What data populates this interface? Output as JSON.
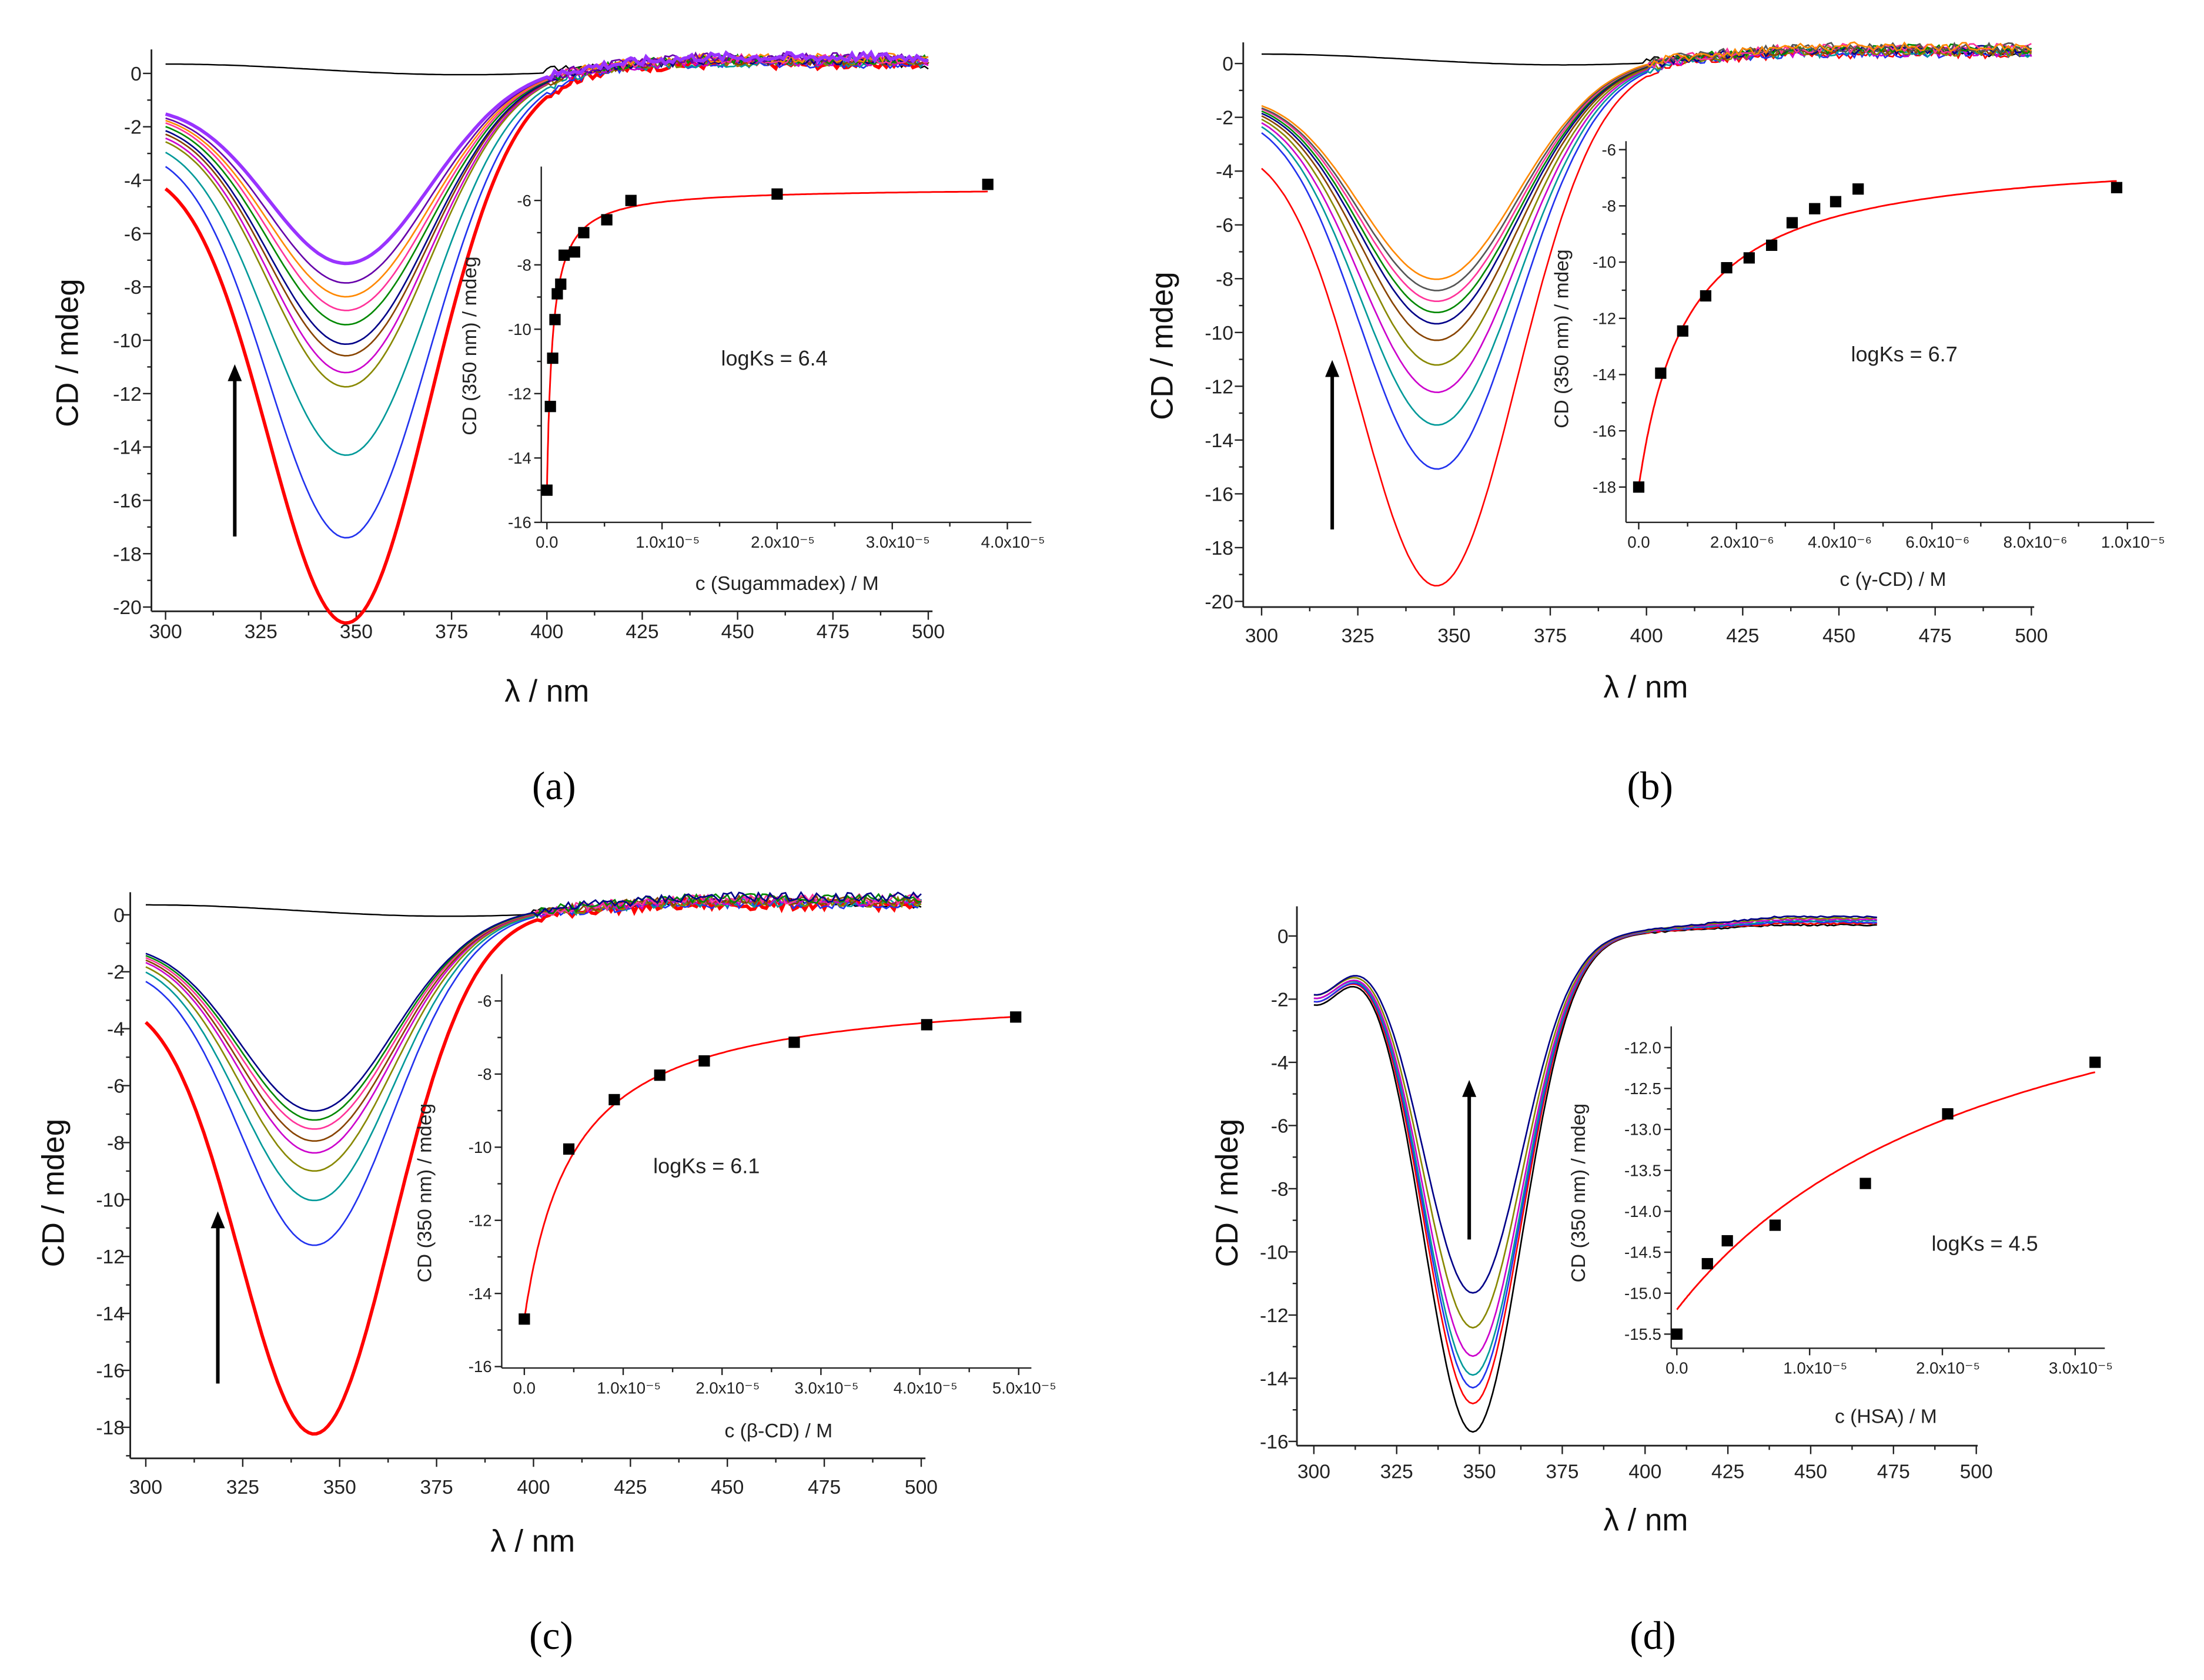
{
  "chart_data": [
    {
      "type": "line",
      "caption": "(a)",
      "main": {
        "xlabel": "λ / nm",
        "ylabel": "CD / mdeg",
        "xlim": [
          300,
          500
        ],
        "ylim": [
          -20,
          1
        ],
        "xticks": [
          300,
          325,
          350,
          375,
          400,
          425,
          450,
          475,
          500
        ],
        "yticks": [
          0,
          -2,
          -4,
          -6,
          -8,
          -10,
          -12,
          -14,
          -16,
          -18,
          -20
        ],
        "min_wavelength": 348,
        "baseline": {
          "color": "#000000",
          "value": 0.3
        },
        "series": [
          {
            "color": "#ff0000",
            "min": -19.7,
            "start": -2.8,
            "bold": true
          },
          {
            "color": "#2233ee",
            "min": -16.7,
            "start": -2.2
          },
          {
            "color": "#009999",
            "min": -13.7,
            "start": -1.9
          },
          {
            "color": "#888800",
            "min": -11.2,
            "start": -1.7
          },
          {
            "color": "#cc00cc",
            "min": -10.7,
            "start": -1.6
          },
          {
            "color": "#884400",
            "min": -10.1,
            "start": -1.5
          },
          {
            "color": "#000088",
            "min": -9.7,
            "start": -1.4
          },
          {
            "color": "#008800",
            "min": -9.0,
            "start": -1.3
          },
          {
            "color": "#ff3399",
            "min": -8.5,
            "start": -1.2
          },
          {
            "color": "#ff8800",
            "min": -8.0,
            "start": -1.15
          },
          {
            "color": "#6600aa",
            "min": -7.5,
            "start": -1.1
          },
          {
            "color": "#9933ff",
            "min": -6.8,
            "start": -1.0,
            "bold": true
          }
        ]
      },
      "inset": {
        "xlabel": "c (Sugammadex) / M",
        "ylabel": "CD (350 nm) / mdeg",
        "annotation": "logKs = 6.4",
        "x_unit": 1e-05,
        "xlim": [
          0,
          4.1
        ],
        "ylim": [
          -16,
          -5
        ],
        "xticks": [
          {
            "v": 0,
            "label": "0.0"
          },
          {
            "v": 1,
            "label": "1.0x10⁻⁵"
          },
          {
            "v": 2,
            "label": "2.0x10⁻⁵"
          },
          {
            "v": 3,
            "label": "3.0x10⁻⁵"
          },
          {
            "v": 4,
            "label": "4.0x10⁻⁵"
          }
        ],
        "yticks": [
          {
            "v": -6,
            "label": "-6"
          },
          {
            "v": -8,
            "label": "-8"
          },
          {
            "v": -10,
            "label": "-10"
          },
          {
            "v": -12,
            "label": "-12"
          },
          {
            "v": -14,
            "label": "-14"
          },
          {
            "v": -16,
            "label": "-16"
          }
        ],
        "x": [
          0,
          0.03,
          0.05,
          0.07,
          0.09,
          0.12,
          0.15,
          0.24,
          0.32,
          0.52,
          0.73,
          2.0,
          3.83
        ],
        "y": [
          -15.0,
          -12.4,
          -10.9,
          -9.7,
          -8.9,
          -8.6,
          -7.7,
          -7.6,
          -7.0,
          -6.6,
          -6.0,
          -5.8,
          -5.5
        ],
        "fit": {
          "y0": -15.0,
          "yinf": -5.6,
          "kd": 0.05,
          "color": "#ff0000"
        }
      }
    },
    {
      "type": "line",
      "caption": "(b)",
      "main": {
        "xlabel": "λ / nm",
        "ylabel": "CD / mdeg",
        "xlim": [
          300,
          500
        ],
        "ylim": [
          -20,
          1
        ],
        "xticks": [
          300,
          325,
          350,
          375,
          400,
          425,
          450,
          475,
          500
        ],
        "yticks": [
          0,
          -2,
          -4,
          -6,
          -8,
          -10,
          -12,
          -14,
          -16,
          -18,
          -20
        ],
        "min_wavelength": 346,
        "baseline": {
          "color": "#000000",
          "value": 0.3
        },
        "series": [
          {
            "color": "#ff0000",
            "min": -18.6,
            "start": -2.4
          },
          {
            "color": "#2233ee",
            "min": -14.6,
            "start": -1.4
          },
          {
            "color": "#009999",
            "min": -13.0,
            "start": -1.3
          },
          {
            "color": "#cc00cc",
            "min": -11.8,
            "start": -1.25
          },
          {
            "color": "#888800",
            "min": -10.8,
            "start": -1.2
          },
          {
            "color": "#884400",
            "min": -9.9,
            "start": -1.15
          },
          {
            "color": "#000088",
            "min": -9.3,
            "start": -1.1
          },
          {
            "color": "#008800",
            "min": -8.9,
            "start": -1.05
          },
          {
            "color": "#ff3399",
            "min": -8.5,
            "start": -1.0
          },
          {
            "color": "#555555",
            "min": -8.1,
            "start": -1.0
          },
          {
            "color": "#ff8800",
            "min": -7.7,
            "start": -0.95
          }
        ]
      },
      "inset": {
        "xlabel": "c (γ-CD) / M",
        "ylabel": "CD (350 nm) / mdeg",
        "annotation": "logKs = 6.7",
        "x_unit": 1e-06,
        "xlim": [
          -0.1,
          10.5
        ],
        "ylim": [
          -19.2,
          -6
        ],
        "xticks": [
          {
            "v": 0,
            "label": "0.0"
          },
          {
            "v": 2,
            "label": "2.0x10⁻⁶"
          },
          {
            "v": 4,
            "label": "4.0x10⁻⁶"
          },
          {
            "v": 6,
            "label": "6.0x10⁻⁶"
          },
          {
            "v": 8,
            "label": "8.0x10⁻⁶"
          },
          {
            "v": 10,
            "label": "1.0x10⁻⁵"
          }
        ],
        "yticks": [
          {
            "v": -6,
            "label": "-6"
          },
          {
            "v": -8,
            "label": "-8"
          },
          {
            "v": -10,
            "label": "-10"
          },
          {
            "v": -12,
            "label": "-12"
          },
          {
            "v": -14,
            "label": "-14"
          },
          {
            "v": -16,
            "label": "-16"
          },
          {
            "v": -18,
            "label": "-18"
          }
        ],
        "x": [
          0,
          0.45,
          0.9,
          1.37,
          1.8,
          2.26,
          2.72,
          3.14,
          3.6,
          4.03,
          4.49,
          9.78
        ],
        "y": [
          -18.0,
          -13.95,
          -12.45,
          -11.2,
          -10.2,
          -9.85,
          -9.4,
          -8.6,
          -8.1,
          -7.85,
          -7.4,
          -7.35
        ],
        "fit": {
          "y0": -18.0,
          "yinf": -6.0,
          "kd": 1.0,
          "color": "#ff0000"
        }
      }
    },
    {
      "type": "line",
      "caption": "(c)",
      "main": {
        "xlabel": "λ / nm",
        "ylabel": "CD / mdeg",
        "xlim": [
          300,
          500
        ],
        "ylim": [
          -19,
          1
        ],
        "xticks": [
          300,
          325,
          350,
          375,
          400,
          425,
          450,
          475,
          500
        ],
        "yticks": [
          0,
          -2,
          -4,
          -6,
          -8,
          -10,
          -12,
          -14,
          -16,
          -18
        ],
        "min_wavelength": 344,
        "baseline": {
          "color": "#000000",
          "value": 0.3
        },
        "series": [
          {
            "color": "#ff0000",
            "min": -17.4,
            "start": -2.3,
            "bold": true
          },
          {
            "color": "#2233ee",
            "min": -11.1,
            "start": -1.4
          },
          {
            "color": "#009999",
            "min": -9.6,
            "start": -1.2
          },
          {
            "color": "#888800",
            "min": -8.6,
            "start": -1.1
          },
          {
            "color": "#cc00cc",
            "min": -8.0,
            "start": -1.0
          },
          {
            "color": "#884400",
            "min": -7.6,
            "start": -0.95
          },
          {
            "color": "#ff3399",
            "min": -7.2,
            "start": -0.9
          },
          {
            "color": "#008800",
            "min": -6.9,
            "start": -0.85
          },
          {
            "color": "#000088",
            "min": -6.6,
            "start": -0.8
          }
        ]
      },
      "inset": {
        "xlabel": "c (β-CD) / M",
        "ylabel": "CD (350 nm) / mdeg",
        "annotation": "logKs = 6.1",
        "x_unit": 1e-05,
        "xlim": [
          -0.25,
          5.1
        ],
        "ylim": [
          -16,
          -5.3
        ],
        "xticks": [
          {
            "v": 0,
            "label": "0.0"
          },
          {
            "v": 1,
            "label": "1.0x10⁻⁵"
          },
          {
            "v": 2,
            "label": "2.0x10⁻⁵"
          },
          {
            "v": 3,
            "label": "3.0x10⁻⁵"
          },
          {
            "v": 4,
            "label": "4.0x10⁻⁵"
          },
          {
            "v": 5,
            "label": "5.0x10⁻⁵"
          }
        ],
        "yticks": [
          {
            "v": -6,
            "label": "-6"
          },
          {
            "v": -8,
            "label": "-8"
          },
          {
            "v": -10,
            "label": "-10"
          },
          {
            "v": -12,
            "label": "-12"
          },
          {
            "v": -14,
            "label": "-14"
          },
          {
            "v": -16,
            "label": "-16"
          }
        ],
        "x": [
          0,
          0.45,
          0.91,
          1.37,
          1.82,
          2.73,
          4.07,
          4.97
        ],
        "y": [
          -14.7,
          -10.05,
          -8.7,
          -8.03,
          -7.64,
          -7.13,
          -6.65,
          -6.44
        ],
        "fit": {
          "y0": -14.7,
          "yinf": -5.6,
          "kd": 0.5,
          "color": "#ff0000"
        }
      }
    },
    {
      "type": "line",
      "caption": "(d)",
      "main": {
        "xlabel": "λ / nm",
        "ylabel": "CD / mdeg",
        "xlim": [
          300,
          500
        ],
        "ylim": [
          -16,
          1
        ],
        "xticks": [
          300,
          325,
          350,
          375,
          400,
          425,
          450,
          475,
          500
        ],
        "yticks": [
          0,
          -2,
          -4,
          -6,
          -8,
          -10,
          -12,
          -14,
          -16
        ],
        "min_wavelength": 348,
        "series": [
          {
            "color": "#000000",
            "min": -15.7,
            "start": -2.1
          },
          {
            "color": "#ff0000",
            "min": -14.8,
            "start": -2.0
          },
          {
            "color": "#2233ee",
            "min": -14.3,
            "start": -2.0
          },
          {
            "color": "#009999",
            "min": -13.9,
            "start": -1.9
          },
          {
            "color": "#cc00cc",
            "min": -13.3,
            "start": -1.9
          },
          {
            "color": "#888800",
            "min": -12.4,
            "start": -1.8
          },
          {
            "color": "#000088",
            "min": -11.3,
            "start": -1.8
          }
        ]
      },
      "inset": {
        "xlabel": "c (HSA) / M",
        "ylabel": "CD (350 nm) / mdeg",
        "annotation": "logKs = 4.5",
        "x_unit": 1e-05,
        "xlim": [
          -0.05,
          3.3
        ],
        "ylim": [
          -15.7,
          -11.75
        ],
        "xticks": [
          {
            "v": 0,
            "label": "0.0"
          },
          {
            "v": 1,
            "label": "1.0x10⁻⁵"
          },
          {
            "v": 2,
            "label": "2.0x10⁻⁵"
          },
          {
            "v": 3,
            "label": "3.0x10⁻⁵"
          }
        ],
        "yticks": [
          {
            "v": -12,
            "label": "-12.0"
          },
          {
            "v": -12.5,
            "label": "-12.5"
          },
          {
            "v": -13,
            "label": "-13.0"
          },
          {
            "v": -13.5,
            "label": "-13.5"
          },
          {
            "v": -14,
            "label": "-14.0"
          },
          {
            "v": -14.5,
            "label": "-14.5"
          },
          {
            "v": -15,
            "label": "-15.0"
          },
          {
            "v": -15.5,
            "label": "-15.5"
          }
        ],
        "x": [
          0,
          0.23,
          0.38,
          0.74,
          1.42,
          2.04,
          3.15
        ],
        "y": [
          -15.5,
          -14.64,
          -14.36,
          -14.17,
          -13.66,
          -12.81,
          -12.18
        ],
        "fit": {
          "y0": -15.2,
          "yinf": -10.0,
          "kd": 2.5,
          "color": "#ff0000"
        }
      }
    }
  ]
}
